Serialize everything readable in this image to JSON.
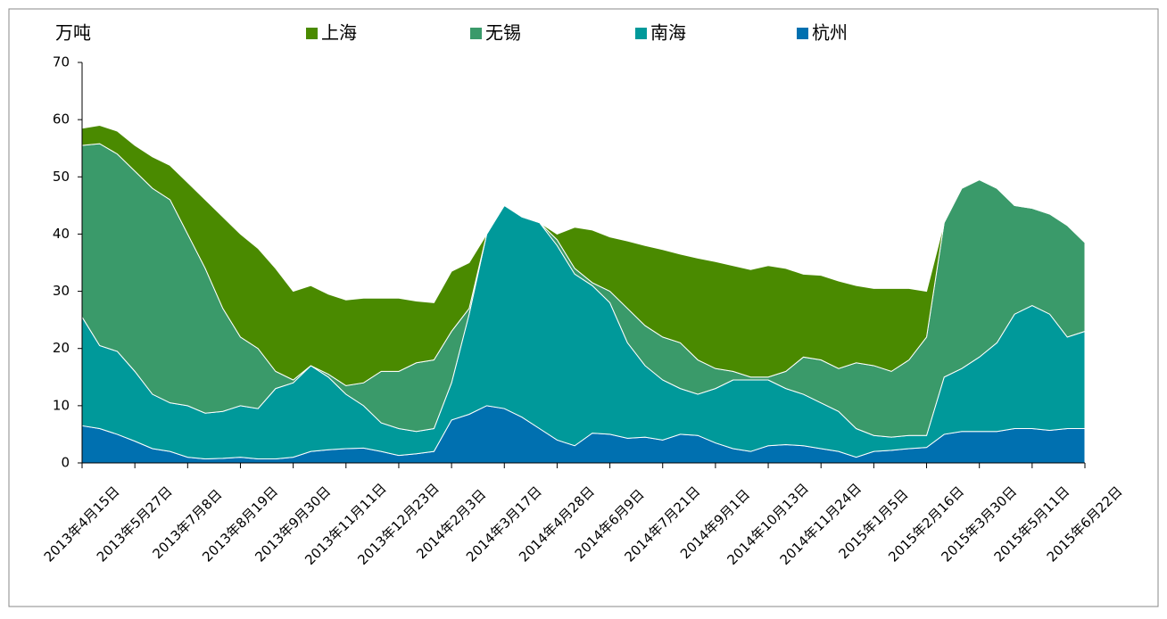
{
  "chart_data": {
    "type": "stacked_area",
    "y_label": "万吨",
    "categories": [
      "2013年4月15日",
      null,
      null,
      "2013年5月27日",
      null,
      null,
      "2013年7月8日",
      null,
      null,
      "2013年8月19日",
      null,
      null,
      "2013年9月30日",
      null,
      null,
      "2013年11月11日",
      null,
      null,
      "2013年12月23日",
      null,
      null,
      "2014年2月3日",
      null,
      null,
      "2014年3月17日",
      null,
      null,
      "2014年4月28日",
      null,
      null,
      "2014年6月9日",
      null,
      null,
      "2014年7月21日",
      null,
      null,
      "2014年9月1日",
      null,
      null,
      "2014年10月13日",
      null,
      null,
      "2014年11月24日",
      null,
      null,
      "2015年1月5日",
      null,
      null,
      "2015年2月16日",
      null,
      null,
      "2015年3月30日",
      null,
      null,
      "2015年5月11日",
      null,
      null,
      "2015年6月22日"
    ],
    "series": [
      {
        "name": "上海",
        "color": "#4a8a00",
        "values": [
          3,
          3.2,
          4,
          4.5,
          5.5,
          6,
          9,
          12,
          16,
          18,
          17.5,
          18,
          15.5,
          14,
          14,
          15,
          14.8,
          12.8,
          12.8,
          10.8,
          10,
          10.5,
          8,
          0,
          0,
          0,
          0,
          1,
          7.2,
          9.2,
          9.5,
          11.8,
          14,
          15.3,
          15.5,
          17.8,
          18.7,
          18.5,
          18.8,
          19.5,
          18,
          14.5,
          14.8,
          15.3,
          13.5,
          13.5,
          14.5,
          12.5,
          8,
          0,
          0,
          0,
          0,
          0,
          0,
          0,
          0,
          0
        ]
      },
      {
        "name": "无锡",
        "color": "#3a9a6a",
        "values": [
          30,
          35.3,
          34.5,
          35,
          36,
          35.5,
          30,
          25.3,
          18,
          12,
          10.5,
          3,
          0.5,
          0,
          0.5,
          1.5,
          4,
          9,
          10,
          12,
          12,
          9,
          1,
          0,
          0,
          0,
          0,
          1,
          1,
          0.5,
          2,
          6,
          7,
          7.5,
          8,
          6,
          3.5,
          1.5,
          0.5,
          0.5,
          3,
          6.5,
          7.5,
          7.5,
          11.5,
          12.2,
          11.5,
          13.2,
          17.2,
          27,
          31.5,
          31,
          27,
          19,
          17,
          17.5,
          19.5,
          15.5
        ]
      },
      {
        "name": "南海",
        "color": "#00999a",
        "values": [
          19,
          14.5,
          14.5,
          12.2,
          9.5,
          8.5,
          9,
          8,
          8.2,
          9,
          8.8,
          12.3,
          13,
          15,
          12.7,
          9.5,
          7.4,
          5,
          4.7,
          3.9,
          4,
          6.5,
          17.5,
          30,
          35.5,
          35,
          36,
          34,
          30,
          25.8,
          23,
          16.7,
          12.5,
          10.5,
          8,
          7.2,
          9.5,
          12,
          12.5,
          11.5,
          9.8,
          9,
          8,
          7,
          5,
          2.8,
          2.3,
          2.3,
          2.1,
          10,
          11,
          13,
          15.5,
          20,
          21.5,
          20.3,
          16,
          17
        ]
      },
      {
        "name": "杭州",
        "color": "#0070b0",
        "values": [
          6.5,
          6,
          5,
          3.8,
          2.5,
          2,
          1,
          0.7,
          0.8,
          1,
          0.7,
          0.7,
          1,
          2,
          2.3,
          2.5,
          2.6,
          2,
          1.3,
          1.6,
          2,
          7.5,
          8.5,
          10,
          9.5,
          8,
          6,
          4,
          3,
          5.2,
          5,
          4.3,
          4.5,
          4,
          5,
          4.8,
          3.5,
          2.5,
          2,
          3,
          3.2,
          3,
          2.5,
          2,
          1,
          2,
          2.2,
          2.5,
          2.7,
          5,
          5.5,
          5.5,
          5.5,
          6,
          6,
          5.7,
          6,
          6
        ]
      }
    ],
    "ylim": [
      0,
      70
    ],
    "yticks": [
      0,
      10,
      20,
      30,
      40,
      50,
      60,
      70
    ],
    "grid": false,
    "legend": "top"
  }
}
